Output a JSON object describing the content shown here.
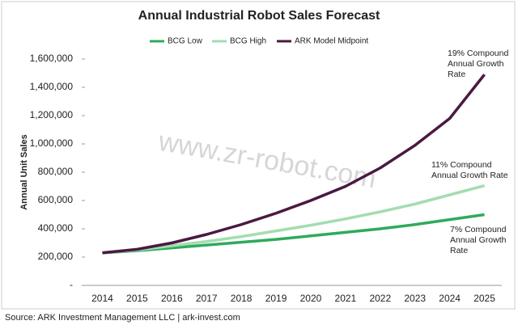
{
  "chart_data": {
    "type": "line",
    "title": "Annual Industrial Robot Sales Forecast",
    "y_label": "Annual Unit Sales",
    "source": "Source: ARK Investment Management LLC | ark-invest.com",
    "watermark": "www.zr-robot.com",
    "categories": [
      "2014",
      "2015",
      "2016",
      "2017",
      "2018",
      "2019",
      "2020",
      "2021",
      "2022",
      "2023",
      "2024",
      "2025"
    ],
    "series": [
      {
        "name": "BCG Low",
        "color": "#2eab5c",
        "values": [
          230000,
          245000,
          265000,
          285000,
          305000,
          325000,
          350000,
          375000,
          400000,
          430000,
          465000,
          500000
        ]
      },
      {
        "name": "BCG High",
        "color": "#a3ddb0",
        "values": [
          230000,
          250000,
          280000,
          310000,
          345000,
          385000,
          425000,
          470000,
          520000,
          575000,
          640000,
          705000
        ]
      },
      {
        "name": "ARK Model Midpoint",
        "color": "#4a1942",
        "values": [
          230000,
          255000,
          300000,
          360000,
          430000,
          510000,
          600000,
          700000,
          830000,
          990000,
          1180000,
          1490000
        ]
      }
    ],
    "ylim": [
      0,
      1600000
    ],
    "yticks": [
      {
        "value": 0,
        "label": "-"
      },
      {
        "value": 200000,
        "label": "200,000"
      },
      {
        "value": 400000,
        "label": "400,000"
      },
      {
        "value": 600000,
        "label": "600,000"
      },
      {
        "value": 800000,
        "label": "800,000"
      },
      {
        "value": 1000000,
        "label": "1,000,000"
      },
      {
        "value": 1200000,
        "label": "1,200,000"
      },
      {
        "value": 1400000,
        "label": "1,400,000"
      },
      {
        "value": 1600000,
        "label": "1,600,000"
      }
    ],
    "annotations": [
      {
        "lines": [
          "19% Compound",
          "Annual Growth",
          "Rate"
        ]
      },
      {
        "lines": [
          "11% Compound",
          "Annual Growth Rate"
        ]
      },
      {
        "lines": [
          "7% Compound",
          "Annual Growth",
          "Rate"
        ]
      }
    ],
    "legend": "top"
  }
}
